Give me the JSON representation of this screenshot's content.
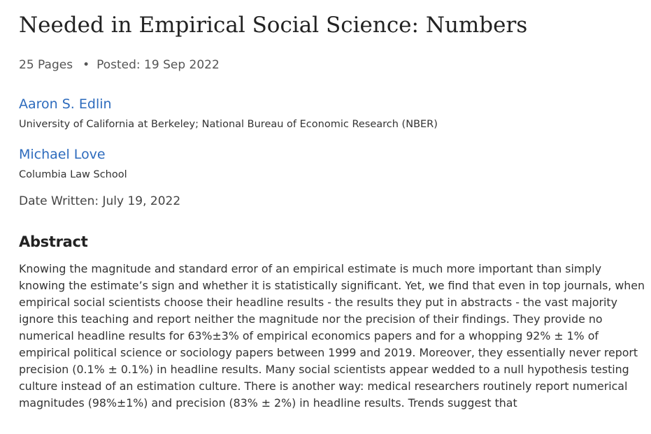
{
  "paper": {
    "title": "Needed in Empirical Social Science: Numbers",
    "pages": "25 Pages",
    "separator": "•",
    "posted": "Posted: 19 Sep 2022",
    "authors": [
      {
        "name": "Aaron S. Edlin",
        "affiliation": "University of California at Berkeley; National Bureau of Economic Research (NBER)"
      },
      {
        "name": "Michael Love",
        "affiliation": "Columbia Law School"
      }
    ],
    "date_written": "Date Written: July 19, 2022",
    "abstract_heading": "Abstract",
    "abstract_text": "Knowing the magnitude and standard error of an empirical estimate is much more important than simply knowing the estimate’s sign and whether it is statistically significant. Yet, we find that even in top journals, when empirical social scientists choose their headline results - the results they put in abstracts - the vast majority ignore this teaching and report neither the magnitude nor the precision of their findings. They provide no numerical headline results for 63%±3% of empirical economics papers and for a whopping 92% ± 1% of empirical political science or sociology papers between 1999 and 2019. Moreover, they essentially never report precision (0.1% ± 0.1%) in headline results. Many social scientists appear wedded to a null hypothesis testing culture instead of an estimation culture. There is another way: medical researchers routinely report numerical magnitudes (98%±1%) and precision (83% ± 2%) in headline results. Trends suggest that"
  },
  "colors": {
    "link": "#2d6bbd",
    "text": "#333333",
    "heading": "#222222"
  }
}
